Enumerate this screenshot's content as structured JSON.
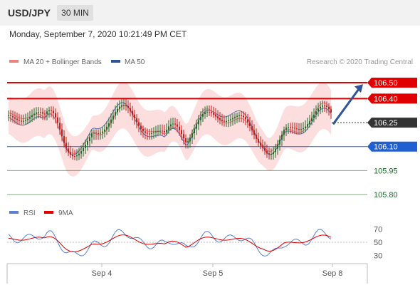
{
  "header": {
    "pair": "USD/JPY",
    "timeframe": "30 MIN",
    "timestamp": "Monday, September 7, 2020 10:21:49 PM CET"
  },
  "credit": "Research © 2020 Trading Central",
  "legend": {
    "main": [
      {
        "label": "MA 20 + Bollinger Bands",
        "color": "#f08080"
      },
      {
        "label": "MA 50",
        "color": "#2f5597"
      }
    ],
    "rsi": [
      {
        "label": "RSI",
        "color": "#5b7fd6"
      },
      {
        "label": "9MA",
        "color": "#e00000"
      }
    ]
  },
  "colors": {
    "up": "#1e6b2a",
    "down": "#c0201b",
    "band": "#fbd8d8",
    "resistance": "#e00000",
    "support": "#1f5fd0",
    "target": "#2a7a2a",
    "current": "#333333",
    "arrow": "#2f5597"
  },
  "chart_data": {
    "type": "candlestick",
    "title": "USD/JPY",
    "timeframe": "30 MIN",
    "x_ticks": [
      "Sep 4",
      "Sep 5",
      "Sep 8"
    ],
    "ylim": [
      105.7,
      106.62
    ],
    "current_price": 106.25,
    "levels": [
      {
        "value": 106.5,
        "label": "106.50",
        "kind": "resistance"
      },
      {
        "value": 106.4,
        "label": "106.40",
        "kind": "resistance"
      },
      {
        "value": 106.25,
        "label": "106.25",
        "kind": "current"
      },
      {
        "value": 106.1,
        "label": "106.10",
        "kind": "support"
      },
      {
        "value": 105.95,
        "label": "105.95",
        "kind": "target"
      },
      {
        "value": 105.8,
        "label": "105.80",
        "kind": "target"
      }
    ],
    "projection": {
      "from": 106.24,
      "to": 106.49
    },
    "rsi": {
      "ylim": [
        20,
        80
      ],
      "ticks": [
        70,
        50,
        30
      ]
    },
    "series": [
      {
        "name": "MA 20 + Bollinger Bands"
      },
      {
        "name": "MA 50"
      },
      {
        "name": "RSI"
      },
      {
        "name": "9MA"
      }
    ]
  }
}
